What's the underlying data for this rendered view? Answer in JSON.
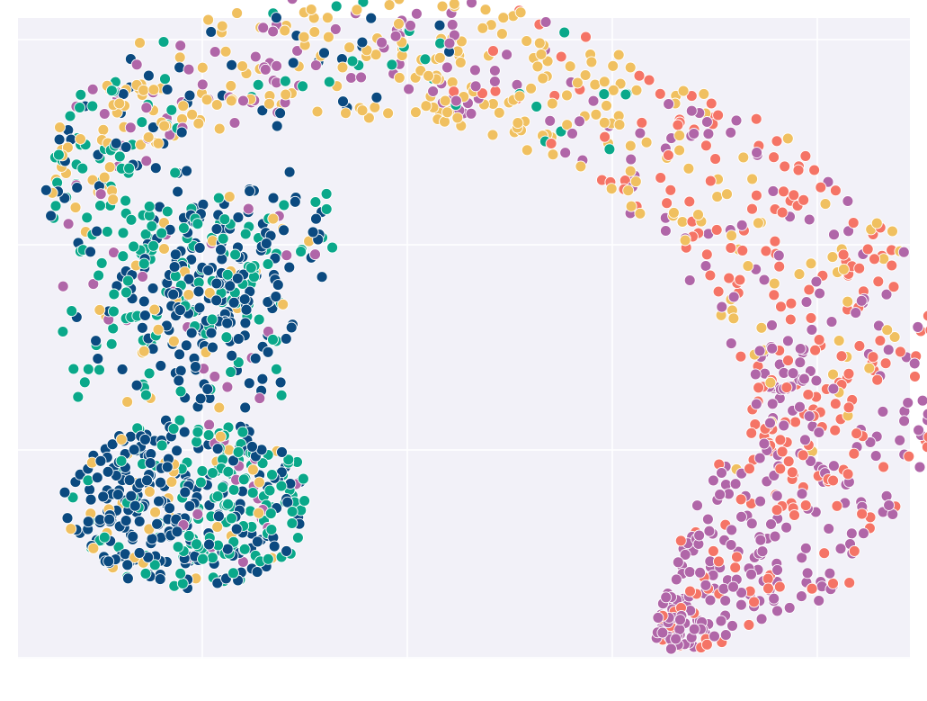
{
  "chart_data": {
    "type": "scatter",
    "title": "",
    "xlabel": "",
    "ylabel": "",
    "xlim": [
      0,
      1
    ],
    "ylim": [
      0,
      1
    ],
    "grid": true,
    "tick_labels_visible": false,
    "legend": "none",
    "background": "#f2f1f8",
    "grid_color": "#ffffff",
    "x_ticks": [
      0.2,
      0.4,
      0.6,
      0.8
    ],
    "y_ticks": [
      0.2,
      0.4,
      0.6
    ],
    "palette": {
      "navy": "#0b4a80",
      "teal": "#0aa88a",
      "gold": "#f0c060",
      "coral": "#f57466",
      "mauve": "#b066a8"
    },
    "clusters": [
      {
        "color_key": "navy",
        "centroid": [
          0.18,
          0.26
        ]
      },
      {
        "color_key": "teal",
        "centroid": [
          0.17,
          0.33
        ]
      },
      {
        "color_key": "gold",
        "centroid": [
          0.38,
          0.85
        ]
      },
      {
        "color_key": "coral",
        "centroid": [
          0.72,
          0.6
        ]
      },
      {
        "color_key": "mauve",
        "centroid": [
          0.75,
          0.35
        ]
      }
    ]
  }
}
